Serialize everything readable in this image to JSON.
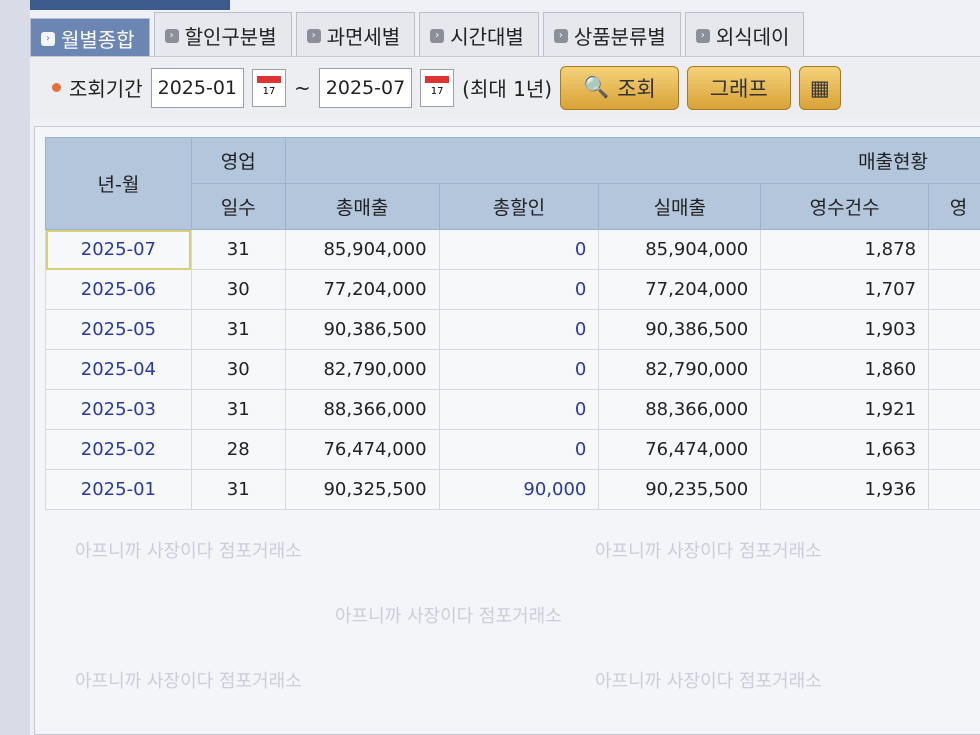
{
  "tabs": [
    {
      "label": "월별종합",
      "active": true
    },
    {
      "label": "할인구분별"
    },
    {
      "label": "과면세별"
    },
    {
      "label": "시간대별"
    },
    {
      "label": "상품분류별"
    },
    {
      "label": "외식데이"
    }
  ],
  "filter": {
    "label": "조회기간",
    "from": "2025-01",
    "tilde": "~",
    "to": "2025-07",
    "calendar_day": "17",
    "note": "(최대 1년)",
    "search_label": "조회",
    "graph_label": "그래프"
  },
  "table": {
    "group_header": "매출현황",
    "headers": {
      "ym": "년-월",
      "days_top": "영업",
      "days_bottom": "일수",
      "gross": "총매출",
      "discount": "총할인",
      "net": "실매출",
      "receipts": "영수건수",
      "next": "영"
    },
    "rows": [
      {
        "ym": "2025-07",
        "days": "31",
        "gross": "85,904,000",
        "discount": "0",
        "net": "85,904,000",
        "receipts": "1,878"
      },
      {
        "ym": "2025-06",
        "days": "30",
        "gross": "77,204,000",
        "discount": "0",
        "net": "77,204,000",
        "receipts": "1,707"
      },
      {
        "ym": "2025-05",
        "days": "31",
        "gross": "90,386,500",
        "discount": "0",
        "net": "90,386,500",
        "receipts": "1,903"
      },
      {
        "ym": "2025-04",
        "days": "30",
        "gross": "82,790,000",
        "discount": "0",
        "net": "82,790,000",
        "receipts": "1,860"
      },
      {
        "ym": "2025-03",
        "days": "31",
        "gross": "88,366,000",
        "discount": "0",
        "net": "88,366,000",
        "receipts": "1,921"
      },
      {
        "ym": "2025-02",
        "days": "28",
        "gross": "76,474,000",
        "discount": "0",
        "net": "76,474,000",
        "receipts": "1,663"
      },
      {
        "ym": "2025-01",
        "days": "31",
        "gross": "90,325,500",
        "discount": "90,000",
        "net": "90,235,500",
        "receipts": "1,936"
      }
    ]
  },
  "watermark": "아프니까 사장이다 점포거래소"
}
